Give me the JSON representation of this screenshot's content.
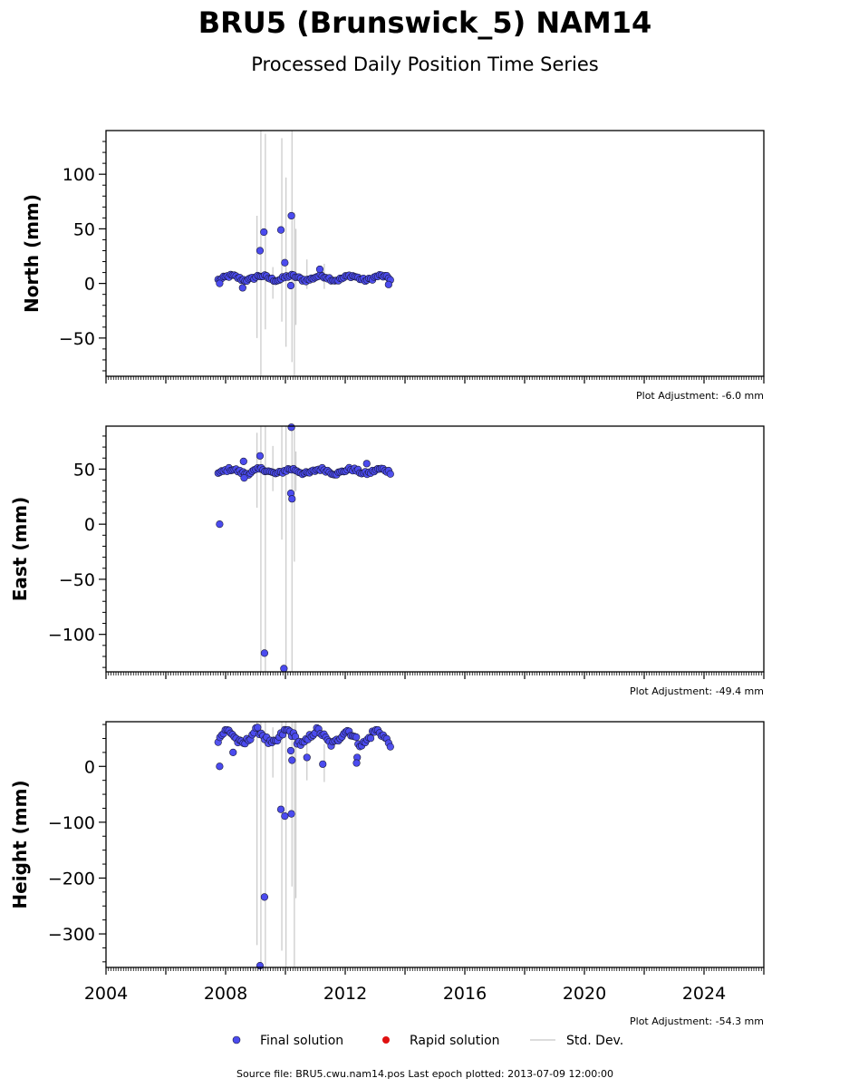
{
  "figure": {
    "title": "BRU5 (Brunswick_5) NAM14",
    "subtitle": "Processed Daily Position Time Series",
    "footer": "Source file: BRU5.cwu.nam14.pos  Last epoch plotted: 2013-07-09 12:00:00"
  },
  "legend": {
    "final_label": "Final solution",
    "rapid_label": "Rapid solution",
    "std_label": "Std. Dev."
  },
  "colors": {
    "final": "#4b4bef",
    "final_edge": "#1a1a3a",
    "rapid": "#e01010",
    "std": "#c8c8c8"
  },
  "chart_data": [
    {
      "type": "scatter",
      "ylabel": "North (mm)",
      "adjustment": "Plot Adjustment: -6.0 mm",
      "xlim": [
        2004.0,
        2026.0
      ],
      "ylim": [
        -85,
        140
      ],
      "yticks": [
        -50,
        0,
        50,
        100
      ],
      "yticklabels": [
        "−50",
        "0",
        "50",
        "100"
      ],
      "ymin_minor": -80,
      "ymax_minor": 130,
      "minor_step": 10,
      "baseline": 5,
      "amp": 2,
      "noise": 1.5,
      "outliers": [
        {
          "x": 2007.8,
          "y": 0
        },
        {
          "x": 2008.57,
          "y": -4
        },
        {
          "x": 2009.15,
          "y": 30
        },
        {
          "x": 2009.28,
          "y": 47
        },
        {
          "x": 2009.85,
          "y": 49
        },
        {
          "x": 2009.98,
          "y": 19
        },
        {
          "x": 2010.2,
          "y": 62
        },
        {
          "x": 2010.18,
          "y": -2
        },
        {
          "x": 2011.15,
          "y": 13
        },
        {
          "x": 2013.45,
          "y": -1
        }
      ],
      "std_bars": [
        {
          "x": 2009.05,
          "lo": -50,
          "hi": 62
        },
        {
          "x": 2009.18,
          "lo": -85,
          "hi": 140
        },
        {
          "x": 2009.33,
          "lo": -42,
          "hi": 137
        },
        {
          "x": 2009.58,
          "lo": -14,
          "hi": 15
        },
        {
          "x": 2009.88,
          "lo": -35,
          "hi": 133
        },
        {
          "x": 2010.02,
          "lo": -58,
          "hi": 97
        },
        {
          "x": 2010.22,
          "lo": -72,
          "hi": 140
        },
        {
          "x": 2010.3,
          "lo": -85,
          "hi": 65
        },
        {
          "x": 2010.35,
          "lo": -38,
          "hi": 50
        },
        {
          "x": 2010.72,
          "lo": -5,
          "hi": 22
        },
        {
          "x": 2011.3,
          "lo": -5,
          "hi": 18
        }
      ]
    },
    {
      "type": "scatter",
      "ylabel": "East (mm)",
      "adjustment": "Plot Adjustment: -49.4 mm",
      "xlim": [
        2004.0,
        2026.0
      ],
      "ylim": [
        -134,
        89
      ],
      "yticks": [
        -100,
        -50,
        0,
        50
      ],
      "yticklabels": [
        "−100",
        "−50",
        "0",
        "50"
      ],
      "ymin_minor": -130,
      "ymax_minor": 80,
      "minor_step": 10,
      "baseline": 48,
      "amp": 2,
      "noise": 1.6,
      "outliers": [
        {
          "x": 2007.8,
          "y": 0
        },
        {
          "x": 2008.6,
          "y": 57
        },
        {
          "x": 2008.62,
          "y": 42
        },
        {
          "x": 2009.15,
          "y": 62
        },
        {
          "x": 2009.3,
          "y": -117
        },
        {
          "x": 2009.95,
          "y": -131
        },
        {
          "x": 2010.2,
          "y": 88
        },
        {
          "x": 2010.18,
          "y": 28
        },
        {
          "x": 2010.22,
          "y": 23
        },
        {
          "x": 2012.72,
          "y": 55
        }
      ],
      "std_bars": [
        {
          "x": 2009.05,
          "lo": 15,
          "hi": 83
        },
        {
          "x": 2009.18,
          "lo": -134,
          "hi": 89
        },
        {
          "x": 2009.33,
          "lo": -134,
          "hi": 89
        },
        {
          "x": 2009.58,
          "lo": 30,
          "hi": 71
        },
        {
          "x": 2009.88,
          "lo": -14,
          "hi": 89
        },
        {
          "x": 2010.02,
          "lo": -134,
          "hi": 89
        },
        {
          "x": 2010.22,
          "lo": -134,
          "hi": 89
        },
        {
          "x": 2010.3,
          "lo": -34,
          "hi": 89
        },
        {
          "x": 2010.35,
          "lo": 30,
          "hi": 66
        }
      ]
    },
    {
      "type": "scatter",
      "ylabel": "Height (mm)",
      "adjustment": "Plot Adjustment: -54.3 mm",
      "xlim": [
        2004.0,
        2026.0
      ],
      "ylim": [
        -360,
        80
      ],
      "yticks": [
        -300,
        -200,
        -100,
        0
      ],
      "yticklabels": [
        "−300",
        "−200",
        "−100",
        "0"
      ],
      "ymin_minor": -350,
      "ymax_minor": 75,
      "minor_step": 25,
      "xticks": [
        2004,
        2008,
        2012,
        2016,
        2020,
        2024
      ],
      "xticklabels": [
        "2004",
        "2008",
        "2012",
        "2016",
        "2020",
        "2024"
      ],
      "baseline": 52,
      "amp": 12,
      "noise": 6,
      "outliers": [
        {
          "x": 2007.8,
          "y": 0
        },
        {
          "x": 2008.25,
          "y": 25
        },
        {
          "x": 2009.15,
          "y": -357
        },
        {
          "x": 2009.3,
          "y": -234
        },
        {
          "x": 2009.85,
          "y": -77
        },
        {
          "x": 2009.98,
          "y": -89
        },
        {
          "x": 2010.2,
          "y": -85
        },
        {
          "x": 2010.18,
          "y": 28
        },
        {
          "x": 2010.22,
          "y": 11
        },
        {
          "x": 2010.72,
          "y": 16
        },
        {
          "x": 2011.25,
          "y": 4
        },
        {
          "x": 2012.4,
          "y": 16
        },
        {
          "x": 2012.38,
          "y": 6
        }
      ],
      "std_bars": [
        {
          "x": 2009.05,
          "lo": -320,
          "hi": 80
        },
        {
          "x": 2009.18,
          "lo": -360,
          "hi": 80
        },
        {
          "x": 2009.33,
          "lo": -360,
          "hi": 80
        },
        {
          "x": 2009.58,
          "lo": -20,
          "hi": 70
        },
        {
          "x": 2009.88,
          "lo": -330,
          "hi": 80
        },
        {
          "x": 2010.02,
          "lo": -360,
          "hi": 80
        },
        {
          "x": 2010.22,
          "lo": -215,
          "hi": 80
        },
        {
          "x": 2010.3,
          "lo": -360,
          "hi": 80
        },
        {
          "x": 2010.35,
          "lo": -236,
          "hi": 80
        },
        {
          "x": 2010.72,
          "lo": -25,
          "hi": 60
        },
        {
          "x": 2011.3,
          "lo": -28,
          "hi": 40
        }
      ]
    }
  ],
  "series_span": {
    "start": 2007.75,
    "end": 2013.52
  }
}
